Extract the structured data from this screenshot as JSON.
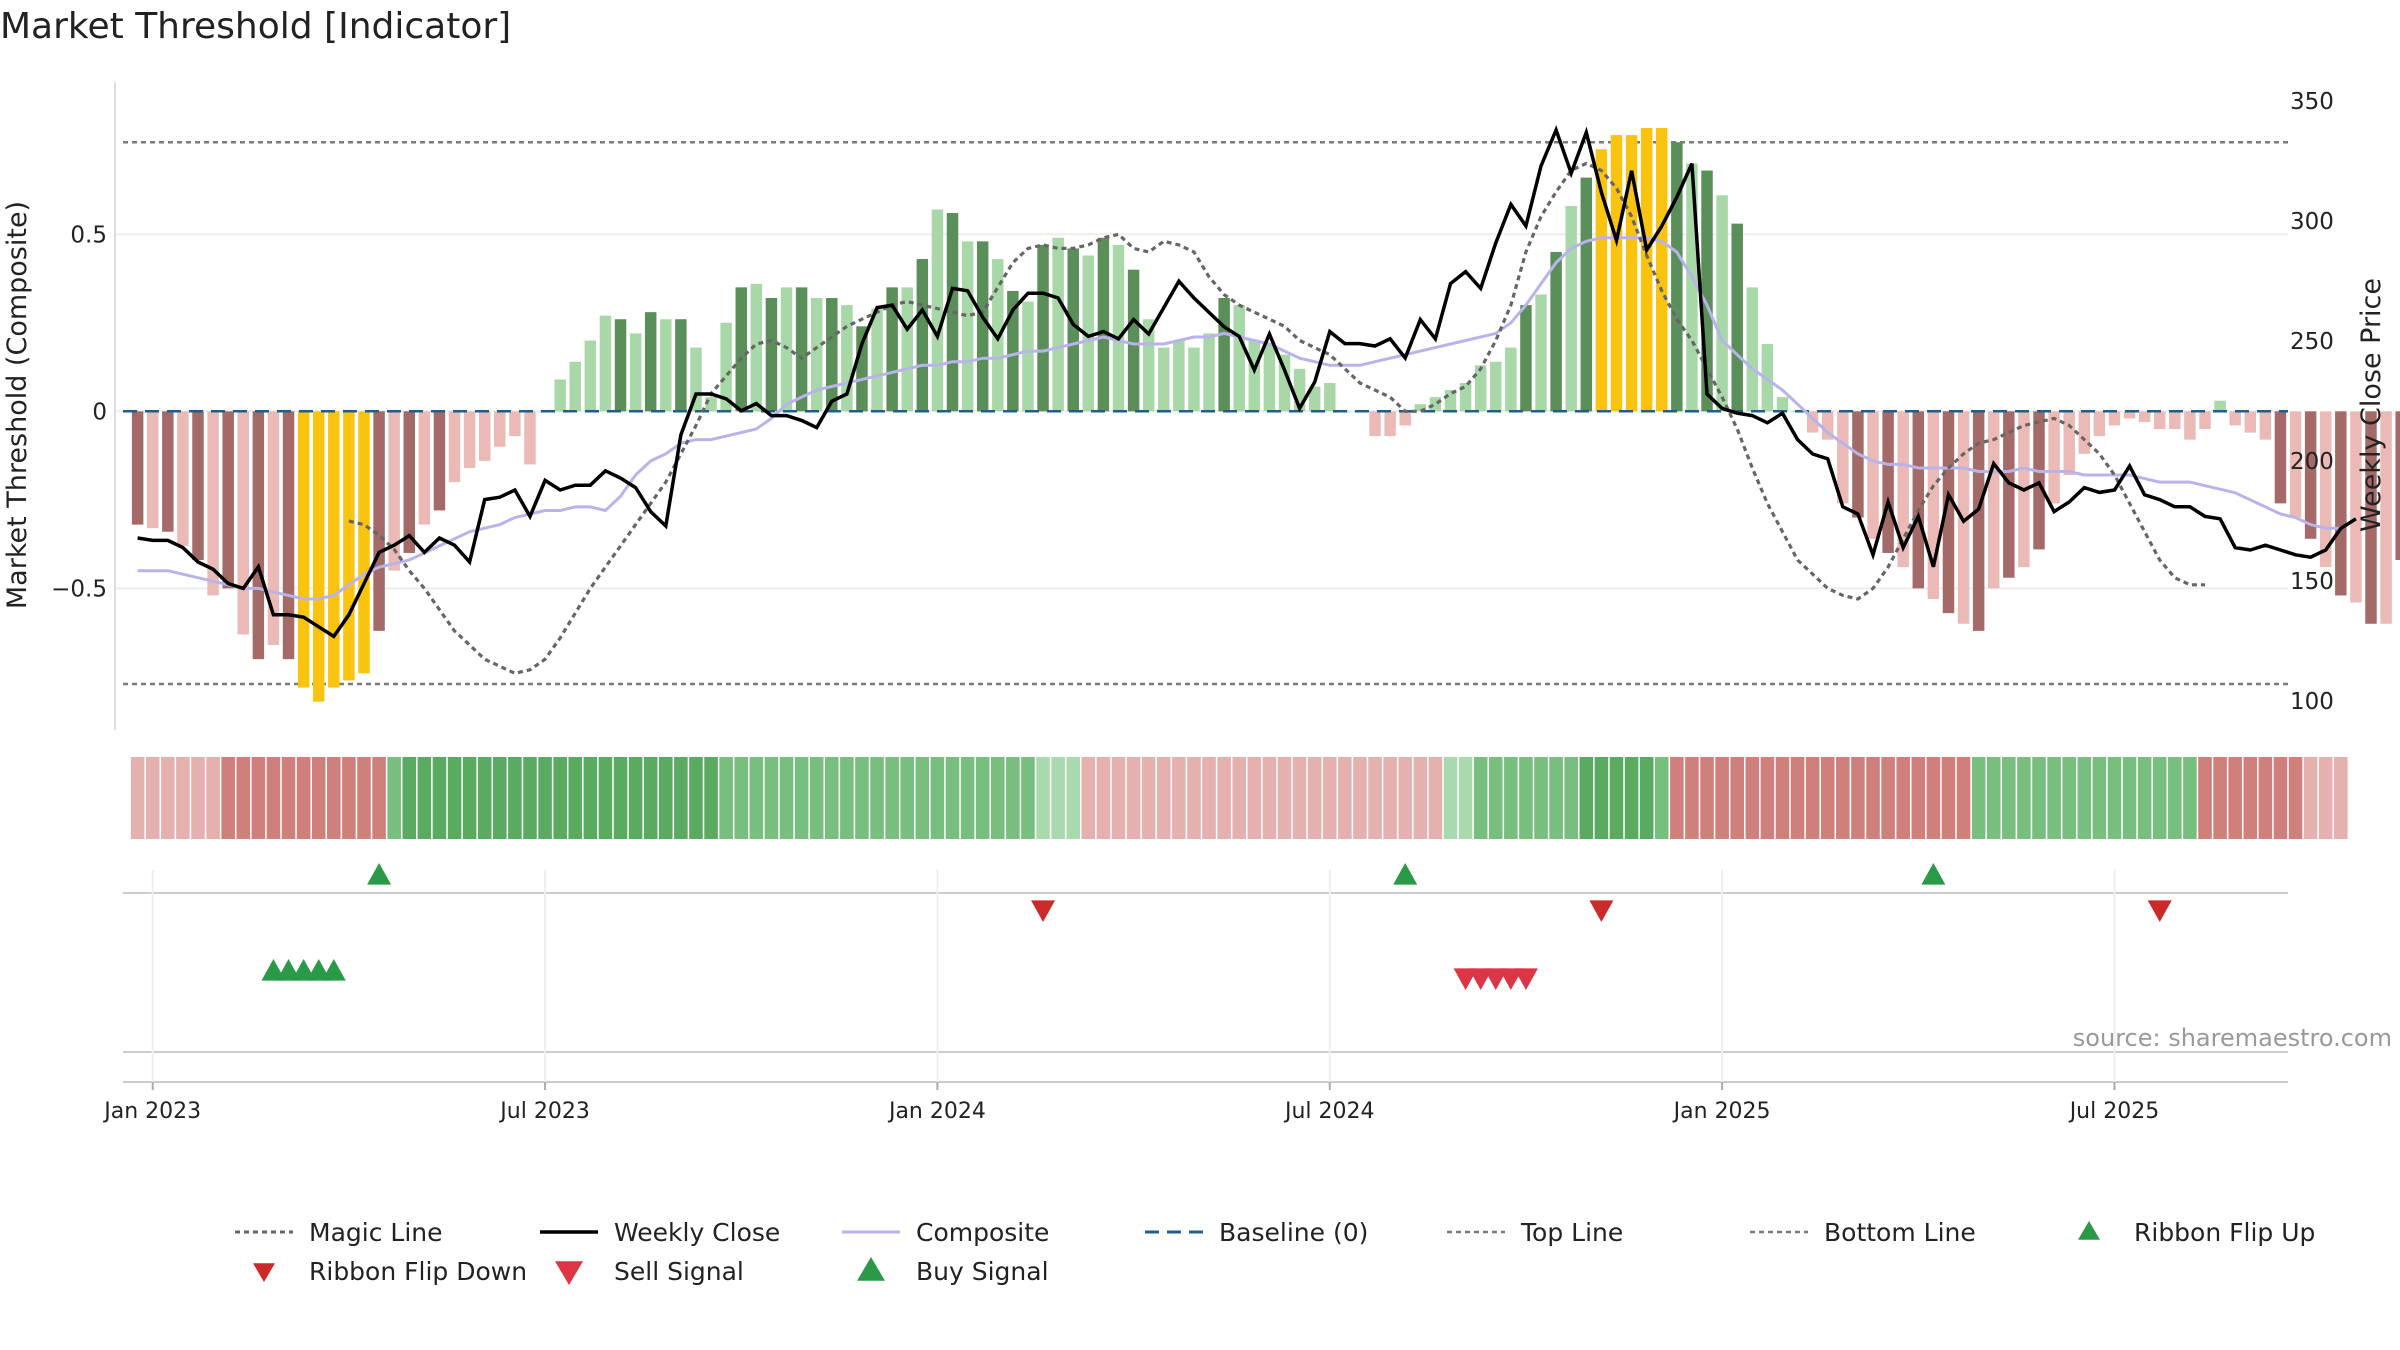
{
  "title": "Market Threshold [Indicator]",
  "source_note": "source: sharemaestro.com",
  "colors": {
    "pos_dark": "#5a8f5a",
    "pos_light": "#a8d8a8",
    "neg_dark": "#a46a68",
    "neg_light": "#ebbab6",
    "extreme": "#f9c30f",
    "weekly_close": "#000000",
    "composite": "#b9b3ea",
    "magic_line": "#666666",
    "baseline": "#1f5f8b",
    "bound_line": "#7a7a7a",
    "signal_up": "#2a9a48",
    "signal_down": "#cc2a2a",
    "sell": "#dc3545"
  },
  "chart_data": {
    "type": "bar",
    "title": "Market Threshold [Indicator]",
    "ylabel_left": "Market Threshold (Composite)",
    "ylabel_right": "Weekly Close Price",
    "ylim_left": [
      -0.9,
      0.93
    ],
    "ylim_right": [
      88,
      358
    ],
    "left_ticks": [
      {
        "value": 0.5,
        "label": "0.5"
      },
      {
        "value": 0,
        "label": "0"
      },
      {
        "value": -0.5,
        "label": "−0.5"
      }
    ],
    "right_ticks": [
      {
        "value": 350,
        "label": "350"
      },
      {
        "value": 300,
        "label": "300"
      },
      {
        "value": 250,
        "label": "250"
      },
      {
        "value": 200,
        "label": "200"
      },
      {
        "value": 150,
        "label": "150"
      },
      {
        "value": 100,
        "label": "100"
      }
    ],
    "x_ticks": [
      {
        "week": 1,
        "label": "Jan 2023"
      },
      {
        "week": 27,
        "label": "Jul 2023"
      },
      {
        "week": 53,
        "label": "Jan 2024"
      },
      {
        "week": 79,
        "label": "Jul 2024"
      },
      {
        "week": 105,
        "label": "Jan 2025"
      },
      {
        "week": 131,
        "label": "Jul 2025"
      }
    ],
    "grid": true,
    "top_line": 0.76,
    "bottom_line": -0.77,
    "baseline": 0,
    "x_range": [
      -1.5,
      142.5
    ],
    "composite_bars": [
      -0.32,
      -0.33,
      -0.34,
      -0.38,
      -0.42,
      -0.52,
      -0.5,
      -0.63,
      -0.7,
      -0.66,
      -0.7,
      -0.78,
      -0.82,
      -0.78,
      -0.76,
      -0.74,
      -0.62,
      -0.45,
      -0.4,
      -0.32,
      -0.28,
      -0.2,
      -0.16,
      -0.14,
      -0.1,
      -0.07,
      -0.15,
      0.0,
      0.09,
      0.14,
      0.2,
      0.27,
      0.26,
      0.22,
      0.28,
      0.26,
      0.26,
      0.18,
      0.04,
      0.25,
      0.35,
      0.36,
      0.32,
      0.35,
      0.35,
      0.32,
      0.32,
      0.3,
      0.24,
      0.29,
      0.35,
      0.35,
      0.43,
      0.57,
      0.56,
      0.48,
      0.48,
      0.43,
      0.34,
      0.31,
      0.47,
      0.49,
      0.46,
      0.44,
      0.49,
      0.47,
      0.4,
      0.26,
      0.18,
      0.2,
      0.18,
      0.22,
      0.32,
      0.3,
      0.2,
      0.19,
      0.16,
      0.12,
      0.07,
      0.08,
      0.0,
      0.0,
      -0.07,
      -0.07,
      -0.04,
      0.02,
      0.04,
      0.06,
      0.08,
      0.13,
      0.14,
      0.18,
      0.3,
      0.33,
      0.45,
      0.58,
      0.66,
      0.74,
      0.78,
      0.78,
      0.8,
      0.8,
      0.76,
      0.7,
      0.68,
      0.61,
      0.53,
      0.35,
      0.19,
      0.04,
      0.0,
      -0.06,
      -0.08,
      -0.26,
      -0.3,
      -0.36,
      -0.4,
      -0.44,
      -0.5,
      -0.53,
      -0.57,
      -0.6,
      -0.62,
      -0.5,
      -0.47,
      -0.44,
      -0.39,
      -0.26,
      -0.18,
      -0.12,
      -0.07,
      -0.04,
      -0.02,
      -0.03,
      -0.05,
      -0.05,
      -0.08,
      -0.05,
      0.03,
      -0.04,
      -0.06,
      -0.08,
      -0.26,
      -0.3,
      -0.36,
      -0.44,
      -0.52,
      -0.54,
      -0.6,
      -0.6,
      -0.42
    ],
    "extreme_bar_ranges": [
      [
        11,
        15
      ],
      [
        97,
        101
      ]
    ],
    "series": [
      {
        "name": "Weekly Close",
        "axis": "right",
        "values": [
          168,
          167,
          167,
          164,
          158,
          155,
          149,
          147,
          156,
          136,
          136,
          135,
          131,
          127,
          136,
          149,
          162,
          165,
          169,
          162,
          168,
          165,
          158,
          184,
          185,
          188,
          177,
          192,
          188,
          190,
          190,
          196,
          193,
          189,
          179,
          173,
          211,
          228,
          228,
          226,
          221,
          224,
          219,
          219,
          217,
          214,
          225,
          228,
          249,
          264,
          265,
          255,
          263,
          252,
          272,
          271,
          260,
          251,
          263,
          270,
          270,
          268,
          257,
          252,
          254,
          251,
          259,
          253,
          264,
          275,
          268,
          262,
          256,
          252,
          238,
          253,
          238,
          222,
          233,
          254,
          249,
          249,
          248,
          251,
          243,
          259,
          251,
          274,
          279,
          272,
          291,
          307,
          298,
          323,
          338,
          320,
          337,
          312,
          292,
          321,
          288,
          298,
          310,
          324,
          228,
          222,
          220,
          219,
          216,
          220,
          209,
          203,
          201,
          181,
          178,
          161,
          183,
          164,
          177,
          156,
          186,
          175,
          180,
          199,
          191,
          188,
          191,
          179,
          183,
          189,
          187,
          188,
          198,
          186,
          184,
          181,
          181,
          177,
          176,
          164,
          163,
          165,
          163,
          161,
          160,
          163,
          172,
          176
        ]
      },
      {
        "name": "Composite",
        "axis": "left",
        "values": [
          -0.45,
          -0.45,
          -0.45,
          -0.46,
          -0.47,
          -0.48,
          -0.49,
          -0.5,
          -0.5,
          -0.51,
          -0.52,
          -0.53,
          -0.53,
          -0.52,
          -0.49,
          -0.46,
          -0.44,
          -0.43,
          -0.42,
          -0.4,
          -0.38,
          -0.36,
          -0.34,
          -0.33,
          -0.32,
          -0.3,
          -0.29,
          -0.28,
          -0.28,
          -0.27,
          -0.27,
          -0.28,
          -0.24,
          -0.18,
          -0.14,
          -0.12,
          -0.09,
          -0.08,
          -0.08,
          -0.07,
          -0.06,
          -0.05,
          -0.02,
          0.02,
          0.04,
          0.06,
          0.07,
          0.08,
          0.09,
          0.1,
          0.11,
          0.12,
          0.13,
          0.13,
          0.14,
          0.14,
          0.15,
          0.15,
          0.16,
          0.17,
          0.17,
          0.18,
          0.19,
          0.2,
          0.21,
          0.2,
          0.19,
          0.19,
          0.19,
          0.2,
          0.21,
          0.21,
          0.22,
          0.21,
          0.2,
          0.19,
          0.17,
          0.15,
          0.14,
          0.13,
          0.13,
          0.13,
          0.14,
          0.15,
          0.16,
          0.17,
          0.18,
          0.19,
          0.2,
          0.21,
          0.22,
          0.25,
          0.3,
          0.36,
          0.42,
          0.46,
          0.48,
          0.49,
          0.49,
          0.49,
          0.49,
          0.48,
          0.45,
          0.38,
          0.3,
          0.2,
          0.16,
          0.12,
          0.09,
          0.06,
          0.02,
          -0.02,
          -0.06,
          -0.09,
          -0.12,
          -0.14,
          -0.15,
          -0.15,
          -0.16,
          -0.16,
          -0.16,
          -0.16,
          -0.17,
          -0.17,
          -0.17,
          -0.16,
          -0.17,
          -0.17,
          -0.17,
          -0.18,
          -0.18,
          -0.18,
          -0.18,
          -0.19,
          -0.2,
          -0.2,
          -0.2,
          -0.21,
          -0.22,
          -0.23,
          -0.25,
          -0.27,
          -0.29,
          -0.3,
          -0.32,
          -0.33,
          -0.33
        ]
      },
      {
        "name": "Magic Line",
        "axis": "left",
        "values": [
          -0.31,
          -0.32,
          -0.35,
          -0.39,
          -0.45,
          -0.5,
          -0.56,
          -0.62,
          -0.66,
          -0.7,
          -0.72,
          -0.74,
          -0.73,
          -0.7,
          -0.64,
          -0.57,
          -0.5,
          -0.44,
          -0.38,
          -0.32,
          -0.26,
          -0.2,
          -0.12,
          -0.04,
          0.05,
          0.1,
          0.15,
          0.19,
          0.2,
          0.18,
          0.15,
          0.18,
          0.21,
          0.24,
          0.26,
          0.28,
          0.3,
          0.31,
          0.3,
          0.29,
          0.28,
          0.27,
          0.28,
          0.35,
          0.42,
          0.46,
          0.47,
          0.46,
          0.46,
          0.47,
          0.49,
          0.5,
          0.46,
          0.45,
          0.48,
          0.47,
          0.45,
          0.38,
          0.33,
          0.3,
          0.28,
          0.26,
          0.24,
          0.2,
          0.18,
          0.16,
          0.12,
          0.08,
          0.06,
          0.04,
          0.0,
          0.0,
          0.02,
          0.05,
          0.07,
          0.12,
          0.2,
          0.3,
          0.45,
          0.55,
          0.62,
          0.68,
          0.7,
          0.68,
          0.63,
          0.55,
          0.44,
          0.34,
          0.26,
          0.2,
          0.12,
          0.04,
          -0.05,
          -0.16,
          -0.26,
          -0.34,
          -0.42,
          -0.46,
          -0.5,
          -0.52,
          -0.53,
          -0.5,
          -0.44,
          -0.36,
          -0.28,
          -0.21,
          -0.16,
          -0.12,
          -0.09,
          -0.08,
          -0.06,
          -0.04,
          -0.03,
          -0.02,
          -0.04,
          -0.08,
          -0.12,
          -0.18,
          -0.26,
          -0.34,
          -0.42,
          -0.47,
          -0.49,
          -0.49
        ]
      }
    ],
    "ribbon_cells": [
      1,
      1,
      1,
      1,
      1,
      1,
      2,
      2,
      2,
      2,
      2,
      2,
      2,
      2,
      2,
      2,
      2,
      2,
      3,
      3,
      3,
      3,
      3,
      3,
      3,
      3,
      3,
      3,
      3,
      3,
      3,
      3,
      3,
      3,
      3,
      3,
      3,
      3,
      3,
      2,
      2,
      2,
      2,
      2,
      2,
      2,
      2,
      2,
      2,
      2,
      2,
      2,
      2,
      2,
      2,
      2,
      2,
      2,
      2,
      2,
      1,
      1,
      1,
      1,
      1,
      1,
      1,
      1,
      1,
      1,
      1,
      1,
      1,
      1,
      1,
      1,
      1,
      1,
      1,
      1,
      1,
      1,
      1,
      1,
      1,
      1,
      1,
      1,
      1,
      2,
      2,
      2,
      2,
      2,
      2,
      2,
      3,
      3,
      3,
      3,
      3,
      2,
      2,
      2,
      2,
      2,
      2,
      2,
      2,
      2,
      2,
      2,
      2,
      2,
      2,
      2,
      2,
      2,
      2,
      2,
      2,
      2,
      2,
      2,
      2,
      2,
      2,
      2,
      2,
      2,
      2,
      2,
      2,
      2,
      2,
      2,
      2,
      2,
      2,
      2,
      2,
      2,
      2,
      2
    ],
    "ribbon_signs": [
      -1,
      -1,
      -1,
      -1,
      -1,
      -1,
      -1,
      -1,
      -1,
      -1,
      -1,
      -1,
      -1,
      -1,
      -1,
      -1,
      -1,
      1,
      1,
      1,
      1,
      1,
      1,
      1,
      1,
      1,
      1,
      1,
      1,
      1,
      1,
      1,
      1,
      1,
      1,
      1,
      1,
      1,
      1,
      1,
      1,
      1,
      1,
      1,
      1,
      1,
      1,
      1,
      1,
      1,
      1,
      1,
      1,
      1,
      1,
      1,
      1,
      1,
      1,
      1,
      1,
      1,
      1,
      -1,
      -1,
      -1,
      -1,
      -1,
      -1,
      -1,
      -1,
      -1,
      -1,
      -1,
      -1,
      -1,
      -1,
      -1,
      -1,
      -1,
      -1,
      -1,
      -1,
      -1,
      -1,
      -1,
      -1,
      1,
      1,
      1,
      1,
      1,
      1,
      1,
      1,
      1,
      1,
      1,
      1,
      1,
      1,
      1,
      -1,
      -1,
      -1,
      -1,
      -1,
      -1,
      -1,
      -1,
      -1,
      -1,
      -1,
      -1,
      -1,
      -1,
      -1,
      -1,
      -1,
      -1,
      -1,
      -1,
      1,
      1,
      1,
      1,
      1,
      1,
      1,
      1,
      1,
      1,
      1,
      1,
      1,
      1,
      1,
      -1,
      -1,
      -1,
      -1,
      -1,
      -1,
      -1,
      -1,
      -1,
      -1
    ],
    "ribbon_flip_up_weeks": [
      16,
      84,
      119
    ],
    "ribbon_flip_down_weeks": [
      60,
      97,
      134
    ],
    "buy_signal_weeks": [
      9,
      10,
      11,
      12,
      13
    ],
    "sell_signal_weeks": [
      88,
      89,
      90,
      91,
      92
    ]
  },
  "legend": {
    "row1": [
      "Magic Line",
      "Weekly Close",
      "Composite",
      "Baseline (0)",
      "Top Line",
      "Bottom Line",
      "Ribbon Flip Up"
    ],
    "row2": [
      "Ribbon Flip Down",
      "Sell Signal",
      "Buy Signal"
    ]
  }
}
